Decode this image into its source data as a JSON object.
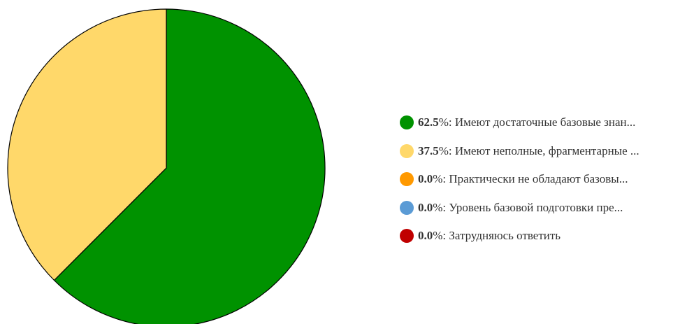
{
  "chart_data": {
    "type": "pie",
    "slices": [
      {
        "value": 62.5,
        "pct_label": "62.5",
        "label": "Имеют достаточные базовые знан...",
        "color": "#009200"
      },
      {
        "value": 37.5,
        "pct_label": "37.5",
        "label": "Имеют неполные, фрагментарные ...",
        "color": "#ffd86a"
      },
      {
        "value": 0.0,
        "pct_label": "0.0",
        "label": "Практически не обладают базовы...",
        "color": "#ff9900"
      },
      {
        "value": 0.0,
        "pct_label": "0.0",
        "label": "Уровень базовой подготовки пре...",
        "color": "#5b9bd5"
      },
      {
        "value": 0.0,
        "pct_label": "0.0",
        "label": "Затрудняюсь ответить",
        "color": "#c00000"
      }
    ],
    "legend_position": "right",
    "pct_suffix": "%:"
  }
}
